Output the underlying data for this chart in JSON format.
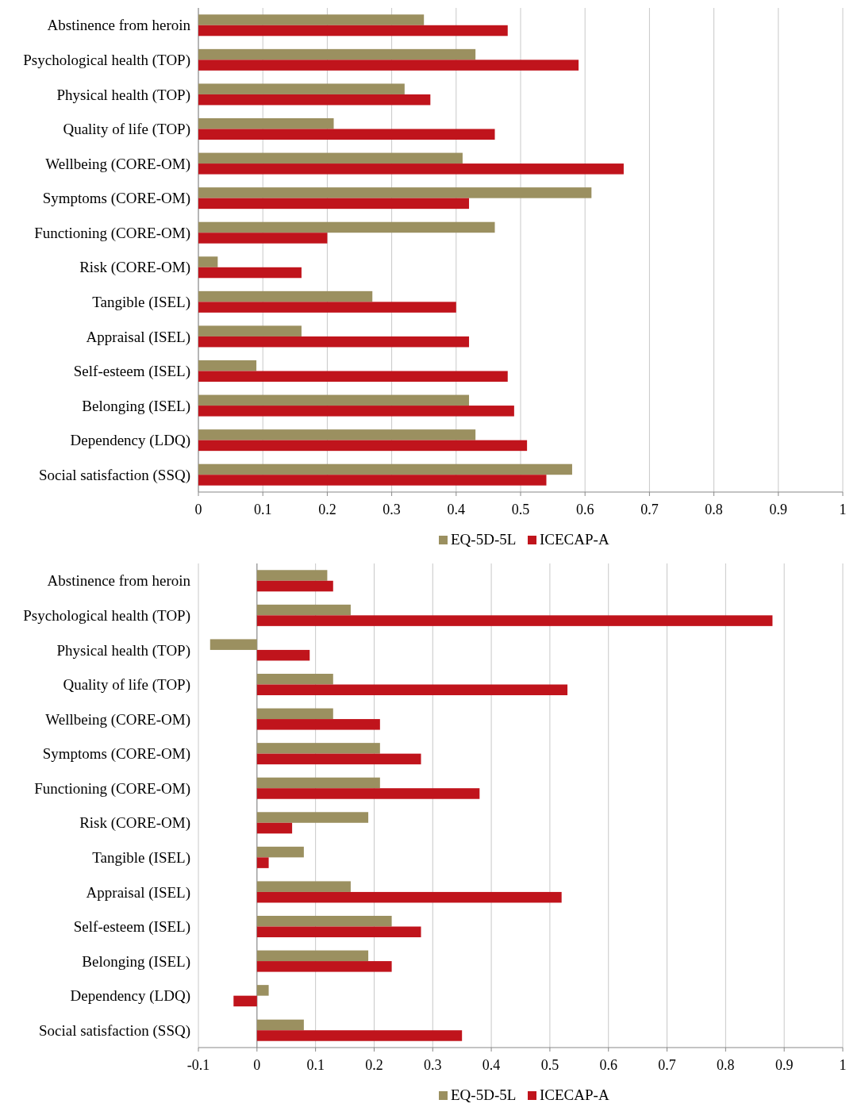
{
  "chart_data": [
    {
      "type": "bar",
      "orientation": "horizontal",
      "grid": "x",
      "legend": "bottom",
      "categories": [
        "Abstinence from heroin",
        "Psychological health (TOP)",
        "Physical health (TOP)",
        "Quality of life (TOP)",
        "Wellbeing (CORE-OM)",
        "Symptoms (CORE-OM)",
        "Functioning (CORE-OM)",
        "Risk (CORE-OM)",
        "Tangible (ISEL)",
        "Appraisal (ISEL)",
        "Self-esteem (ISEL)",
        "Belonging (ISEL)",
        "Dependency (LDQ)",
        "Social satisfaction (SSQ)"
      ],
      "series": [
        {
          "name": "EQ-5D-5L",
          "color": "#9b9060",
          "values": [
            0.35,
            0.43,
            0.32,
            0.21,
            0.41,
            0.61,
            0.46,
            0.03,
            0.27,
            0.16,
            0.09,
            0.42,
            0.43,
            0.58
          ]
        },
        {
          "name": "ICECAP-A",
          "color": "#c0141c",
          "values": [
            0.48,
            0.59,
            0.36,
            0.46,
            0.66,
            0.42,
            0.2,
            0.16,
            0.4,
            0.42,
            0.48,
            0.49,
            0.51,
            0.54
          ]
        }
      ],
      "xlim": [
        0,
        1
      ],
      "xticks": [
        0,
        0.1,
        0.2,
        0.3,
        0.4,
        0.5,
        0.6,
        0.7,
        0.8,
        0.9,
        1
      ]
    },
    {
      "type": "bar",
      "orientation": "horizontal",
      "grid": "x",
      "legend": "bottom",
      "categories": [
        "Abstinence from heroin",
        "Psychological health (TOP)",
        "Physical health (TOP)",
        "Quality of life (TOP)",
        "Wellbeing (CORE-OM)",
        "Symptoms (CORE-OM)",
        "Functioning (CORE-OM)",
        "Risk (CORE-OM)",
        "Tangible (ISEL)",
        "Appraisal (ISEL)",
        "Self-esteem (ISEL)",
        "Belonging (ISEL)",
        "Dependency (LDQ)",
        "Social satisfaction (SSQ)"
      ],
      "series": [
        {
          "name": "EQ-5D-5L",
          "color": "#9b9060",
          "values": [
            0.12,
            0.16,
            -0.08,
            0.13,
            0.13,
            0.21,
            0.21,
            0.19,
            0.08,
            0.16,
            0.23,
            0.19,
            0.02,
            0.08
          ]
        },
        {
          "name": "ICECAP-A",
          "color": "#c0141c",
          "values": [
            0.13,
            0.88,
            0.09,
            0.53,
            0.21,
            0.28,
            0.38,
            0.06,
            0.02,
            0.52,
            0.28,
            0.23,
            -0.04,
            0.35
          ]
        }
      ],
      "xlim": [
        -0.1,
        1
      ],
      "xticks": [
        -0.1,
        0,
        0.1,
        0.2,
        0.3,
        0.4,
        0.5,
        0.6,
        0.7,
        0.8,
        0.9,
        1
      ]
    }
  ]
}
